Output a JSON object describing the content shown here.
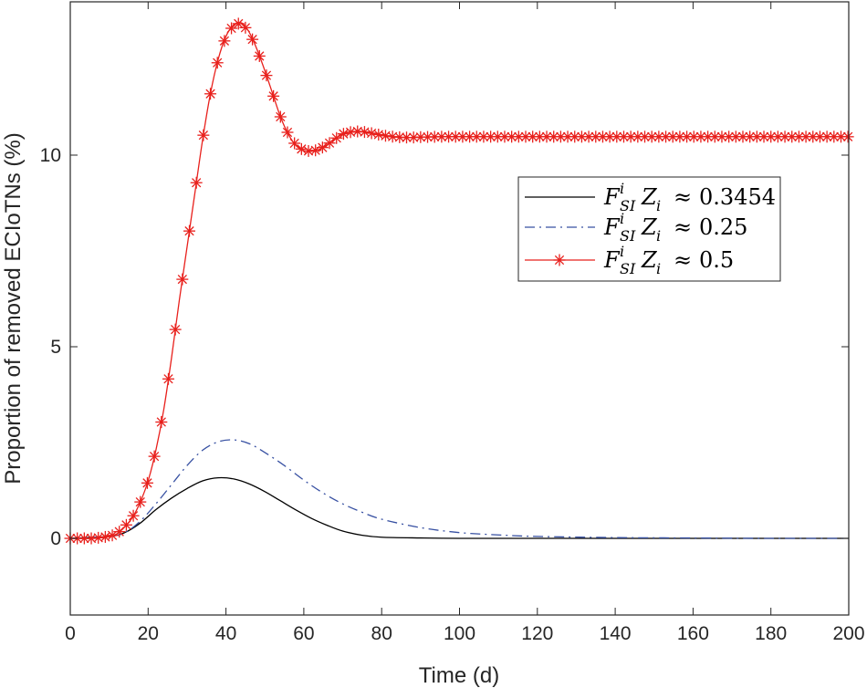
{
  "chart_data": {
    "type": "line",
    "title": "",
    "xlabel": "Time (d)",
    "ylabel": "Proportion of removed ECIoTNs (%)",
    "xlim": [
      0,
      200
    ],
    "ylim": [
      -2,
      14
    ],
    "xticks": [
      0,
      20,
      40,
      60,
      80,
      100,
      120,
      140,
      160,
      180,
      200
    ],
    "yticks": [
      0,
      5,
      10
    ],
    "grid": false,
    "legend_position": "right",
    "series": [
      {
        "name": "F_SI^i Z_i ≈ 0.3454",
        "legend": {
          "base": "F",
          "sup": "i",
          "sub": "SI",
          "rest": "Z",
          "rest_sub": "i",
          "approx": "≈",
          "value": "0.3454"
        },
        "color": "#000000",
        "style": "solid",
        "marker": "none",
        "x": [
          0,
          10,
          14,
          18,
          22,
          26,
          30,
          34,
          38,
          42,
          46,
          50,
          54,
          58,
          62,
          66,
          70,
          75,
          80,
          90,
          100,
          120,
          140,
          160,
          180,
          200
        ],
        "y": [
          0,
          0.05,
          0.15,
          0.4,
          0.75,
          1.05,
          1.3,
          1.5,
          1.58,
          1.55,
          1.42,
          1.22,
          0.98,
          0.74,
          0.52,
          0.34,
          0.19,
          0.08,
          0.03,
          0.01,
          0,
          0,
          0,
          0,
          0,
          0
        ]
      },
      {
        "name": "F_SI^i Z_i ≈ 0.25",
        "legend": {
          "base": "F",
          "sup": "i",
          "sub": "SI",
          "rest": "Z",
          "rest_sub": "i",
          "approx": "≈",
          "value": "0.25"
        },
        "color": "#3750a2",
        "style": "dashdot",
        "marker": "none",
        "x": [
          0,
          10,
          14,
          18,
          22,
          26,
          30,
          34,
          38,
          42,
          46,
          50,
          55,
          60,
          65,
          70,
          75,
          80,
          90,
          100,
          110,
          120,
          140,
          160,
          180,
          200
        ],
        "y": [
          0,
          0.05,
          0.15,
          0.45,
          0.9,
          1.4,
          1.9,
          2.3,
          2.52,
          2.57,
          2.47,
          2.24,
          1.9,
          1.52,
          1.18,
          0.9,
          0.68,
          0.5,
          0.28,
          0.15,
          0.09,
          0.05,
          0.02,
          0.01,
          0,
          0
        ]
      },
      {
        "name": "F_SI^i Z_i ≈ 0.5",
        "legend": {
          "base": "F",
          "sup": "i",
          "sub": "SI",
          "rest": "Z",
          "rest_sub": "i",
          "approx": "≈",
          "value": "0.5"
        },
        "color": "#e8201c",
        "style": "solid",
        "marker": "asterisk",
        "x": [
          0,
          6,
          10,
          12,
          14,
          16,
          18,
          20,
          22,
          24,
          26,
          28,
          30,
          32,
          34,
          36,
          38,
          40,
          42,
          44,
          46,
          48,
          50,
          52,
          54,
          56,
          58,
          60,
          62,
          64,
          66,
          68,
          70,
          72,
          74,
          76,
          78,
          80,
          82,
          84,
          86,
          88,
          90,
          95,
          100,
          110,
          120,
          140,
          160,
          180,
          200
        ],
        "y": [
          0,
          0,
          0.05,
          0.12,
          0.3,
          0.55,
          0.95,
          1.5,
          2.3,
          3.35,
          4.7,
          6.2,
          7.6,
          9.0,
          10.4,
          11.6,
          12.5,
          13.1,
          13.4,
          13.45,
          13.2,
          12.75,
          12.2,
          11.6,
          11.0,
          10.55,
          10.25,
          10.12,
          10.1,
          10.15,
          10.27,
          10.42,
          10.55,
          10.6,
          10.62,
          10.6,
          10.56,
          10.52,
          10.49,
          10.47,
          10.46,
          10.46,
          10.47,
          10.48,
          10.48,
          10.48,
          10.48,
          10.48,
          10.48,
          10.48,
          10.48
        ]
      }
    ]
  }
}
